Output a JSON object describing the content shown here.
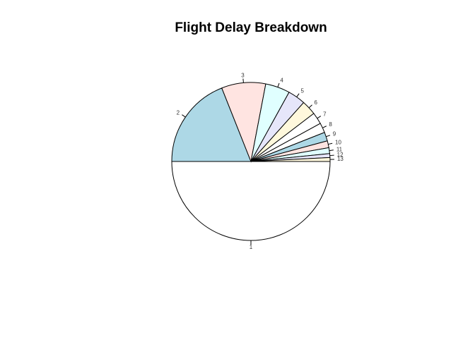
{
  "chart_data": {
    "type": "pie",
    "title": "Flight Delay Breakdown",
    "categories": [
      "1",
      "2",
      "3",
      "4",
      "5",
      "6",
      "7",
      "8",
      "9",
      "10",
      "11",
      "12",
      "13"
    ],
    "values": [
      50.0,
      19.0,
      9.0,
      5.0,
      3.6,
      3.0,
      2.4,
      2.0,
      1.8,
      1.4,
      1.2,
      0.8,
      0.8
    ],
    "colors": [
      "#FFFFFF",
      "#ADD8E6",
      "#FFE4E1",
      "#E0FFFF",
      "#E6E6FA",
      "#FFF8DC",
      "#FFFFFF",
      "#FFFFFF",
      "#ADD8E6",
      "#FFE4E1",
      "#E0FFFF",
      "#E6E6FA",
      "#FFF8DC"
    ],
    "border_color": "#000000",
    "start_angle_deg": 0,
    "direction": "clockwise",
    "legend": "none"
  }
}
